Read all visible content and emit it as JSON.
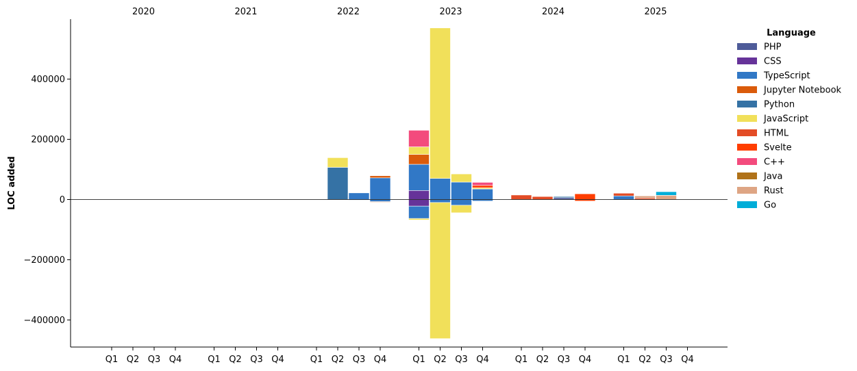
{
  "chart_data": {
    "type": "bar",
    "stacked": true,
    "ylabel": "LOC added",
    "ylim": [
      -490000,
      595000
    ],
    "yticks": [
      -400000,
      -200000,
      0,
      200000,
      400000
    ],
    "ytick_labels": [
      "−400000",
      "−200000",
      "0",
      "200000",
      "400000"
    ],
    "years": [
      "2020",
      "2021",
      "2022",
      "2023",
      "2024",
      "2025"
    ],
    "quarters": [
      "Q1",
      "Q2",
      "Q3",
      "Q4"
    ],
    "legend": {
      "title": "Language",
      "placement": "right",
      "entries": [
        {
          "name": "PHP",
          "color": "#4e5b99"
        },
        {
          "name": "CSS",
          "color": "#663399"
        },
        {
          "name": "TypeScript",
          "color": "#3178c6"
        },
        {
          "name": "Jupyter Notebook",
          "color": "#da5b0b"
        },
        {
          "name": "Python",
          "color": "#3572a5"
        },
        {
          "name": "JavaScript",
          "color": "#f1e05a"
        },
        {
          "name": "HTML",
          "color": "#e34c26"
        },
        {
          "name": "Svelte",
          "color": "#ff3e00"
        },
        {
          "name": "C++",
          "color": "#f34b7d"
        },
        {
          "name": "Java",
          "color": "#b07219"
        },
        {
          "name": "Rust",
          "color": "#dea584"
        },
        {
          "name": "Go",
          "color": "#00add8"
        }
      ]
    },
    "bars": [
      {
        "year": "2022",
        "quarter": "Q2",
        "segments": [
          {
            "lang": "Python",
            "value": 107000
          },
          {
            "lang": "JavaScript",
            "value": 32000
          }
        ]
      },
      {
        "year": "2022",
        "quarter": "Q3",
        "segments": [
          {
            "lang": "TypeScript",
            "value": 22000
          },
          {
            "lang": "TypeScript",
            "value": -2000
          }
        ]
      },
      {
        "year": "2022",
        "quarter": "Q4",
        "segments": [
          {
            "lang": "TypeScript",
            "value": 72000
          },
          {
            "lang": "Jupyter Notebook",
            "value": 7000
          },
          {
            "lang": "TypeScript",
            "value": -7000
          },
          {
            "lang": "Jupyter Notebook",
            "value": -2000
          }
        ]
      },
      {
        "year": "2023",
        "quarter": "Q1",
        "segments": [
          {
            "lang": "CSS",
            "value": 30000
          },
          {
            "lang": "TypeScript",
            "value": 87000
          },
          {
            "lang": "Jupyter Notebook",
            "value": 33000
          },
          {
            "lang": "JavaScript",
            "value": 25000
          },
          {
            "lang": "C++",
            "value": 55000
          },
          {
            "lang": "CSS",
            "value": -22000
          },
          {
            "lang": "TypeScript",
            "value": -41000
          },
          {
            "lang": "JavaScript",
            "value": -5000
          }
        ]
      },
      {
        "year": "2023",
        "quarter": "Q2",
        "segments": [
          {
            "lang": "TypeScript",
            "value": 70000
          },
          {
            "lang": "JavaScript",
            "value": 500000
          },
          {
            "lang": "TypeScript",
            "value": -10000
          },
          {
            "lang": "JavaScript",
            "value": -452000
          }
        ]
      },
      {
        "year": "2023",
        "quarter": "Q3",
        "segments": [
          {
            "lang": "TypeScript",
            "value": 58000
          },
          {
            "lang": "JavaScript",
            "value": 27000
          },
          {
            "lang": "TypeScript",
            "value": -19000
          },
          {
            "lang": "JavaScript",
            "value": -25000
          }
        ]
      },
      {
        "year": "2023",
        "quarter": "Q4",
        "segments": [
          {
            "lang": "TypeScript",
            "value": 35000
          },
          {
            "lang": "JavaScript",
            "value": 4000
          },
          {
            "lang": "Svelte",
            "value": 8000
          },
          {
            "lang": "C++",
            "value": 10000
          },
          {
            "lang": "TypeScript",
            "value": -5000
          }
        ]
      },
      {
        "year": "2024",
        "quarter": "Q1",
        "segments": [
          {
            "lang": "HTML",
            "value": 15000
          }
        ]
      },
      {
        "year": "2024",
        "quarter": "Q2",
        "segments": [
          {
            "lang": "HTML",
            "value": 10000
          }
        ]
      },
      {
        "year": "2024",
        "quarter": "Q3",
        "segments": [
          {
            "lang": "PHP",
            "value": 6000
          },
          {
            "lang": "Python",
            "value": 4000
          }
        ]
      },
      {
        "year": "2024",
        "quarter": "Q4",
        "segments": [
          {
            "lang": "Svelte",
            "value": 19000
          },
          {
            "lang": "Svelte",
            "value": -5000
          }
        ]
      },
      {
        "year": "2025",
        "quarter": "Q1",
        "segments": [
          {
            "lang": "TypeScript",
            "value": 12000
          },
          {
            "lang": "HTML",
            "value": 9000
          }
        ]
      },
      {
        "year": "2025",
        "quarter": "Q2",
        "segments": [
          {
            "lang": "HTML",
            "value": 5000
          },
          {
            "lang": "Rust",
            "value": 7000
          }
        ]
      },
      {
        "year": "2025",
        "quarter": "Q3",
        "segments": [
          {
            "lang": "Rust",
            "value": 14000
          },
          {
            "lang": "Go",
            "value": 12000
          }
        ]
      }
    ]
  }
}
